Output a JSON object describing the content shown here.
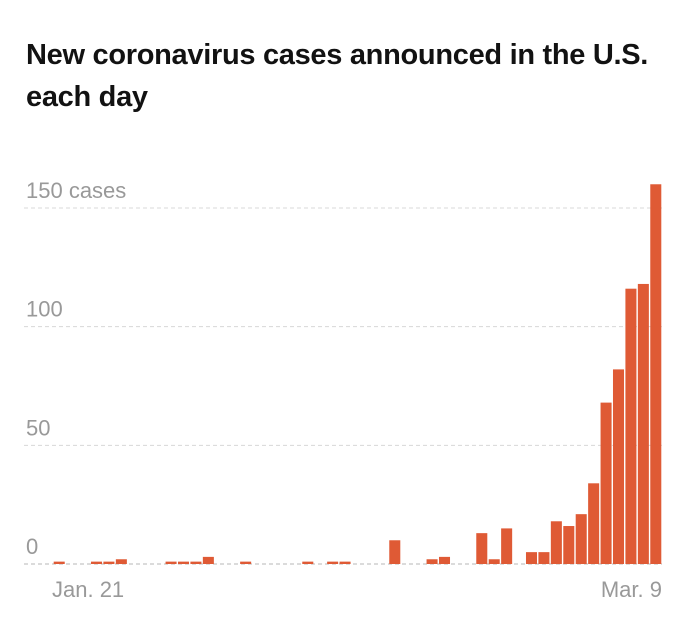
{
  "chart_data": {
    "type": "bar",
    "title": "New coronavirus cases announced in the U.S. each day",
    "xlabel": "",
    "ylabel": "cases",
    "ylim": [
      0,
      150
    ],
    "y_ticks": [
      {
        "value": 0,
        "label": "0"
      },
      {
        "value": 50,
        "label": "50"
      },
      {
        "value": 100,
        "label": "100"
      },
      {
        "value": 150,
        "label": "150 cases"
      }
    ],
    "x_ticks": [
      {
        "index": 0,
        "label": "Jan. 21"
      },
      {
        "index": 48,
        "label": "Mar. 9"
      }
    ],
    "bar_color": "#df5a35",
    "values": [
      1,
      0,
      0,
      1,
      1,
      2,
      0,
      0,
      0,
      1,
      1,
      1,
      3,
      0,
      0,
      1,
      0,
      0,
      0,
      0,
      1,
      0,
      1,
      1,
      0,
      0,
      0,
      10,
      0,
      0,
      2,
      3,
      0,
      0,
      13,
      2,
      15,
      0,
      5,
      5,
      18,
      16,
      21,
      34,
      68,
      82,
      116,
      118,
      160
    ]
  }
}
